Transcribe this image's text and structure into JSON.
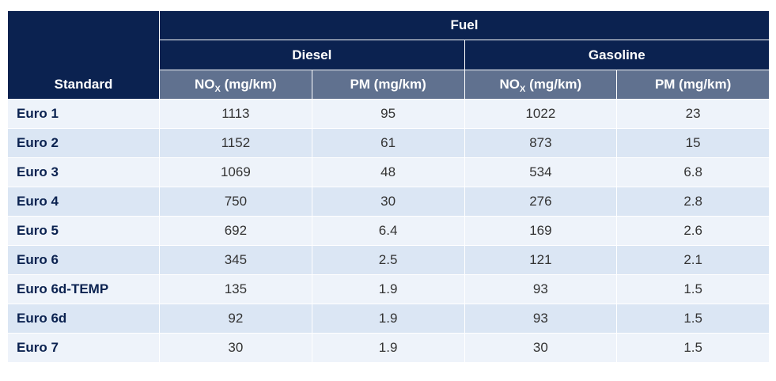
{
  "table": {
    "header": {
      "standard": "Standard",
      "fuel": "Fuel",
      "diesel": "Diesel",
      "gasoline": "Gasoline",
      "nox_prefix": "NO",
      "nox_sub": "X",
      "nox_unit": " (mg/km)",
      "pm": "PM (mg/km)"
    },
    "rows": [
      {
        "standard": "Euro 1",
        "diesel_nox": "1113",
        "diesel_pm": "95",
        "gasoline_nox": "1022",
        "gasoline_pm": "23"
      },
      {
        "standard": "Euro 2",
        "diesel_nox": "1152",
        "diesel_pm": "61",
        "gasoline_nox": "873",
        "gasoline_pm": "15"
      },
      {
        "standard": "Euro 3",
        "diesel_nox": "1069",
        "diesel_pm": "48",
        "gasoline_nox": "534",
        "gasoline_pm": "6.8"
      },
      {
        "standard": "Euro 4",
        "diesel_nox": "750",
        "diesel_pm": "30",
        "gasoline_nox": "276",
        "gasoline_pm": "2.8"
      },
      {
        "standard": "Euro 5",
        "diesel_nox": "692",
        "diesel_pm": "6.4",
        "gasoline_nox": "169",
        "gasoline_pm": "2.6"
      },
      {
        "standard": "Euro 6",
        "diesel_nox": "345",
        "diesel_pm": "2.5",
        "gasoline_nox": "121",
        "gasoline_pm": "2.1"
      },
      {
        "standard": "Euro 6d-TEMP",
        "diesel_nox": "135",
        "diesel_pm": "1.9",
        "gasoline_nox": "93",
        "gasoline_pm": "1.5"
      },
      {
        "standard": "Euro 6d",
        "diesel_nox": "92",
        "diesel_pm": "1.9",
        "gasoline_nox": "93",
        "gasoline_pm": "1.5"
      },
      {
        "standard": "Euro 7",
        "diesel_nox": "30",
        "diesel_pm": "1.9",
        "gasoline_nox": "30",
        "gasoline_pm": "1.5"
      }
    ]
  },
  "colors": {
    "header_dark": "#0b2250",
    "header_mid": "#60718f",
    "row_light": "#eef3fa",
    "row_dark": "#dbe6f4"
  }
}
